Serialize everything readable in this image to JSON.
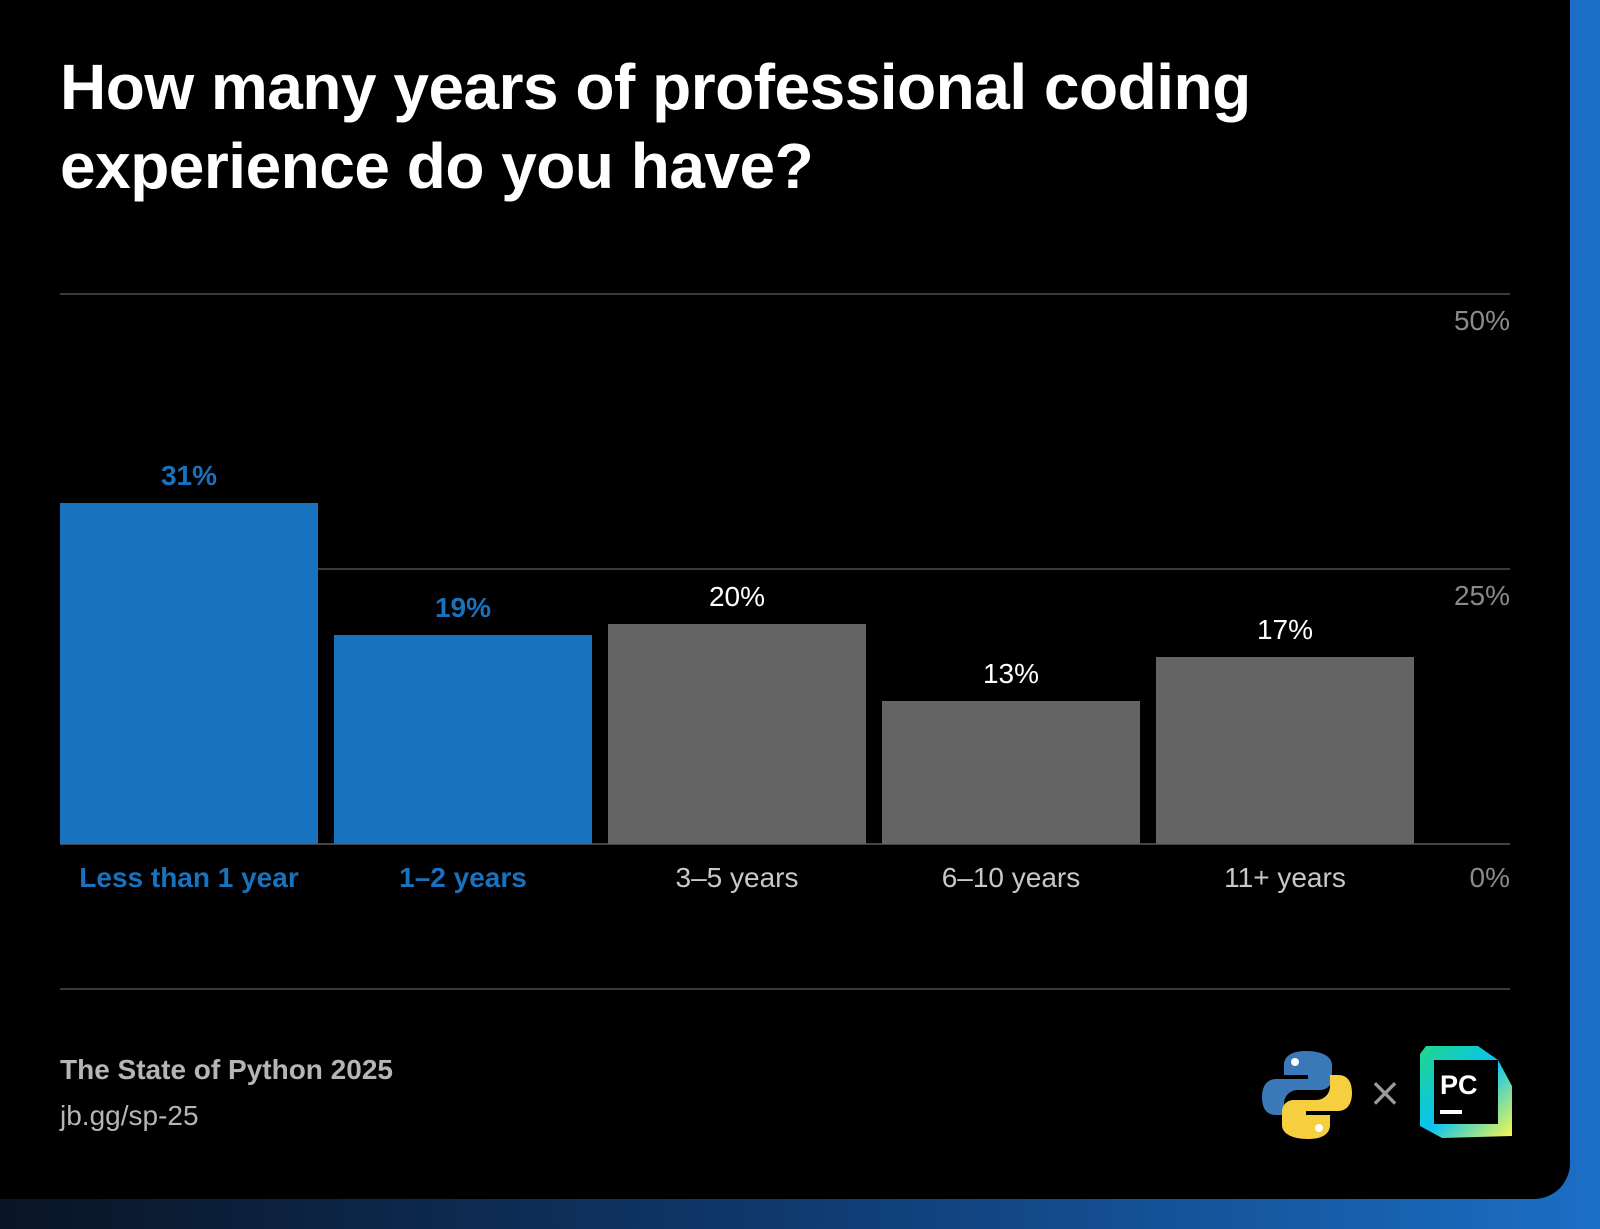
{
  "title": "How many years of professional coding experience do you have?",
  "footer": {
    "source": "The State of Python 2025",
    "url": "jb.gg/sp-25"
  },
  "logos": {
    "python": "python-logo",
    "separator": "×",
    "pycharm_text": "PC"
  },
  "colors": {
    "background": "#000000",
    "highlight": "#1872bd",
    "neutral": "#646464",
    "label_neutral": "#c8c8c8",
    "axis_label": "#8a8a8a"
  },
  "chart_data": {
    "type": "bar",
    "title": "How many years of professional coding experience do you have?",
    "categories": [
      "Less than 1 year",
      "1–2 years",
      "3–5 years",
      "6–10 years",
      "11+ years"
    ],
    "values": [
      31,
      19,
      20,
      13,
      17
    ],
    "value_labels": [
      "31%",
      "19%",
      "20%",
      "13%",
      "17%"
    ],
    "highlighted": [
      true,
      true,
      false,
      false,
      false
    ],
    "ylim": [
      0,
      50
    ],
    "yticks": [
      {
        "value": 50,
        "label": "50%"
      },
      {
        "value": 25,
        "label": "25%"
      },
      {
        "value": 0,
        "label": "0%"
      }
    ],
    "grid": true,
    "axis_label_side": "right"
  }
}
